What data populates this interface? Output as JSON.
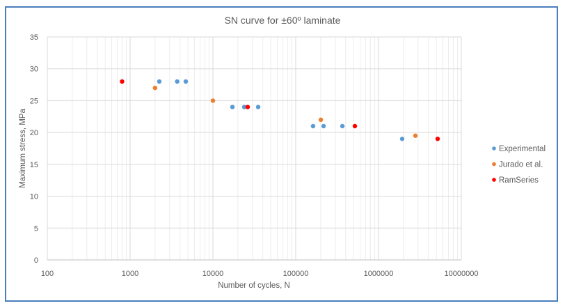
{
  "chart_data": {
    "type": "scatter",
    "title": "SN curve for ±60º laminate",
    "xlabel": "Number of cycles, N",
    "ylabel": "Maximum stress, MPa",
    "xscale": "log",
    "xlim": [
      100,
      10000000
    ],
    "ylim": [
      0,
      35
    ],
    "x_ticks": [
      100,
      1000,
      10000,
      100000,
      1000000,
      10000000
    ],
    "x_tick_labels": [
      "100",
      "1000",
      "10000",
      "100000",
      "1000000",
      "10000000"
    ],
    "y_ticks": [
      0,
      5,
      10,
      15,
      20,
      25,
      30,
      35
    ],
    "y_tick_labels": [
      "0",
      "5",
      "10",
      "15",
      "20",
      "25",
      "30",
      "35"
    ],
    "grid": true,
    "minor_grid": true,
    "legend_position": "right",
    "series": [
      {
        "name": "Experimental",
        "color": "#5B9BD5",
        "points": [
          [
            2250,
            28
          ],
          [
            3700,
            28
          ],
          [
            4700,
            28
          ],
          [
            17200,
            24
          ],
          [
            23900,
            24
          ],
          [
            35200,
            24
          ],
          [
            162000,
            21
          ],
          [
            217000,
            21
          ],
          [
            366000,
            21
          ],
          [
            1930000,
            19
          ]
        ]
      },
      {
        "name": "Jurado et al.",
        "color": "#ED7D31",
        "points": [
          [
            2000,
            27
          ],
          [
            10000,
            25
          ],
          [
            201000,
            22
          ],
          [
            2790000,
            19.5
          ]
        ]
      },
      {
        "name": "RamSeries",
        "color": "#FF0000",
        "points": [
          [
            800,
            28
          ],
          [
            26300,
            24
          ],
          [
            518000,
            21
          ],
          [
            5180000,
            19
          ]
        ]
      }
    ]
  }
}
